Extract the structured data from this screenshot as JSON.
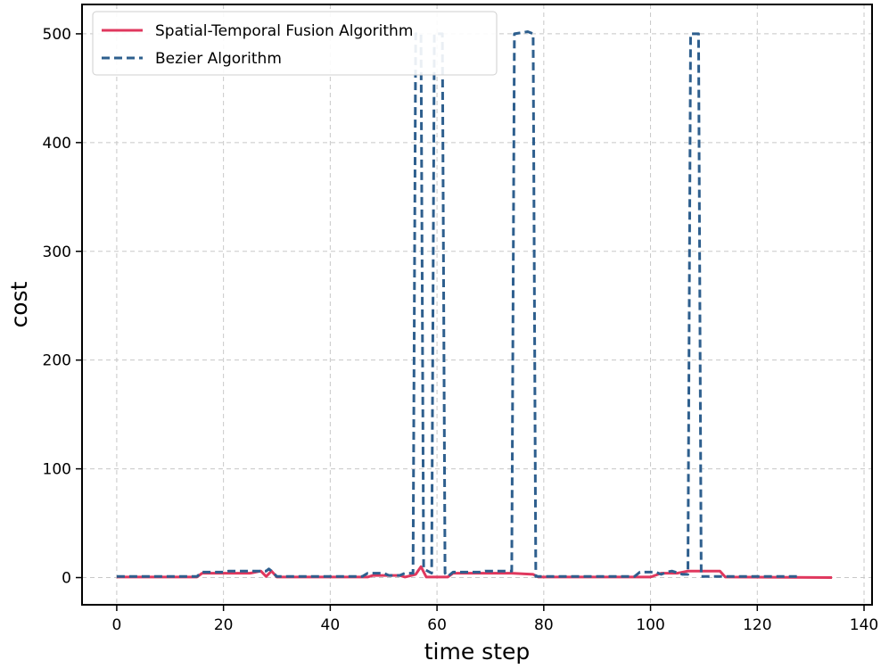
{
  "chart_data": {
    "type": "line",
    "title": "",
    "xlabel": "time step",
    "ylabel": "cost",
    "xlim": [
      -6.5,
      141.5
    ],
    "ylim": [
      -25,
      527
    ],
    "xticks": [
      0,
      20,
      40,
      60,
      80,
      100,
      120,
      140
    ],
    "yticks": [
      0,
      100,
      200,
      300,
      400,
      500
    ],
    "grid": true,
    "legend_position": "top-left",
    "series": [
      {
        "name": "Spatial-Temporal Fusion Algorithm",
        "color": "#e0385e",
        "style": "solid",
        "points": [
          [
            0,
            0.5
          ],
          [
            15,
            0.5
          ],
          [
            16,
            4
          ],
          [
            25,
            4
          ],
          [
            27,
            6
          ],
          [
            28,
            1
          ],
          [
            29,
            6
          ],
          [
            30,
            0.5
          ],
          [
            47,
            0.5
          ],
          [
            48,
            2
          ],
          [
            53,
            2
          ],
          [
            54,
            0.5
          ],
          [
            56,
            3
          ],
          [
            57,
            10
          ],
          [
            58,
            0.5
          ],
          [
            62,
            0.5
          ],
          [
            63,
            4
          ],
          [
            73,
            4
          ],
          [
            74,
            4
          ],
          [
            78,
            3
          ],
          [
            79,
            0.5
          ],
          [
            100,
            0.5
          ],
          [
            102,
            4
          ],
          [
            105,
            4
          ],
          [
            107,
            6
          ],
          [
            113,
            6
          ],
          [
            114,
            0.5
          ],
          [
            134,
            0
          ]
        ]
      },
      {
        "name": "Bezier Algorithm",
        "color": "#2e5f8e",
        "style": "dashed",
        "points": [
          [
            0,
            1
          ],
          [
            15,
            1
          ],
          [
            16,
            5
          ],
          [
            20,
            5
          ],
          [
            21,
            6
          ],
          [
            28,
            6
          ],
          [
            28.5,
            8
          ],
          [
            29,
            6
          ],
          [
            30,
            1
          ],
          [
            46,
            1
          ],
          [
            47,
            4
          ],
          [
            50,
            4
          ],
          [
            51,
            2
          ],
          [
            53,
            2
          ],
          [
            54,
            4
          ],
          [
            55.5,
            4
          ],
          [
            56,
            500
          ],
          [
            57,
            500
          ],
          [
            57.5,
            8
          ],
          [
            59,
            4
          ],
          [
            59.5,
            500
          ],
          [
            61,
            500
          ],
          [
            61.5,
            4
          ],
          [
            62,
            1
          ],
          [
            63,
            5
          ],
          [
            68,
            5
          ],
          [
            69,
            6
          ],
          [
            73.5,
            6
          ],
          [
            74,
            6
          ],
          [
            74.5,
            500
          ],
          [
            77,
            502
          ],
          [
            78,
            500
          ],
          [
            78.5,
            1
          ],
          [
            97,
            1
          ],
          [
            98,
            5
          ],
          [
            101,
            5
          ],
          [
            102,
            3
          ],
          [
            103,
            5
          ],
          [
            104,
            6
          ],
          [
            106,
            3
          ],
          [
            107,
            3
          ],
          [
            107.5,
            500
          ],
          [
            109,
            500
          ],
          [
            109.5,
            1
          ],
          [
            128,
            1
          ]
        ]
      }
    ]
  }
}
